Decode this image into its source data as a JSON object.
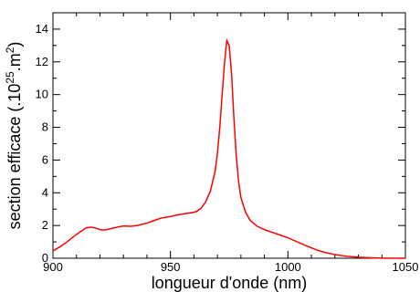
{
  "chart_data": {
    "type": "line",
    "title": "",
    "xlabel": "longueur d'onde (nm)",
    "ylabel_parts": {
      "prefix": "section efficace (.10",
      "exp1": "25",
      "middle": ".m",
      "exp2": "2",
      "suffix": ")"
    },
    "xlim": [
      900,
      1050
    ],
    "ylim": [
      0,
      15
    ],
    "xticks": [
      900,
      950,
      1000,
      1050
    ],
    "yticks": [
      0,
      2,
      4,
      6,
      8,
      10,
      12,
      14
    ],
    "grid": false,
    "series": [
      {
        "color": "#ff0000",
        "x": [
          900,
          903,
          906,
          909,
          912,
          914,
          916,
          918,
          920,
          922,
          925,
          928,
          930,
          933,
          936,
          940,
          943,
          946,
          950,
          953,
          956,
          959,
          961,
          963,
          965,
          967,
          969,
          970,
          971,
          972,
          973,
          974,
          975,
          976,
          977,
          978,
          979,
          980,
          982,
          984,
          987,
          990,
          993,
          996,
          1000,
          1004,
          1008,
          1012,
          1016,
          1020,
          1025,
          1030,
          1035,
          1040,
          1045,
          1050
        ],
        "y": [
          0.45,
          0.7,
          1.0,
          1.35,
          1.65,
          1.85,
          1.9,
          1.85,
          1.75,
          1.72,
          1.82,
          1.92,
          1.97,
          1.95,
          2.0,
          2.15,
          2.3,
          2.45,
          2.55,
          2.65,
          2.72,
          2.78,
          2.85,
          3.05,
          3.45,
          4.1,
          5.3,
          6.4,
          8.0,
          10.0,
          11.9,
          13.3,
          13.0,
          11.3,
          8.6,
          6.3,
          4.7,
          3.7,
          2.8,
          2.3,
          1.95,
          1.75,
          1.6,
          1.45,
          1.25,
          1.0,
          0.75,
          0.52,
          0.35,
          0.22,
          0.12,
          0.06,
          0.03,
          0.01,
          0.0,
          0.0
        ]
      }
    ]
  }
}
